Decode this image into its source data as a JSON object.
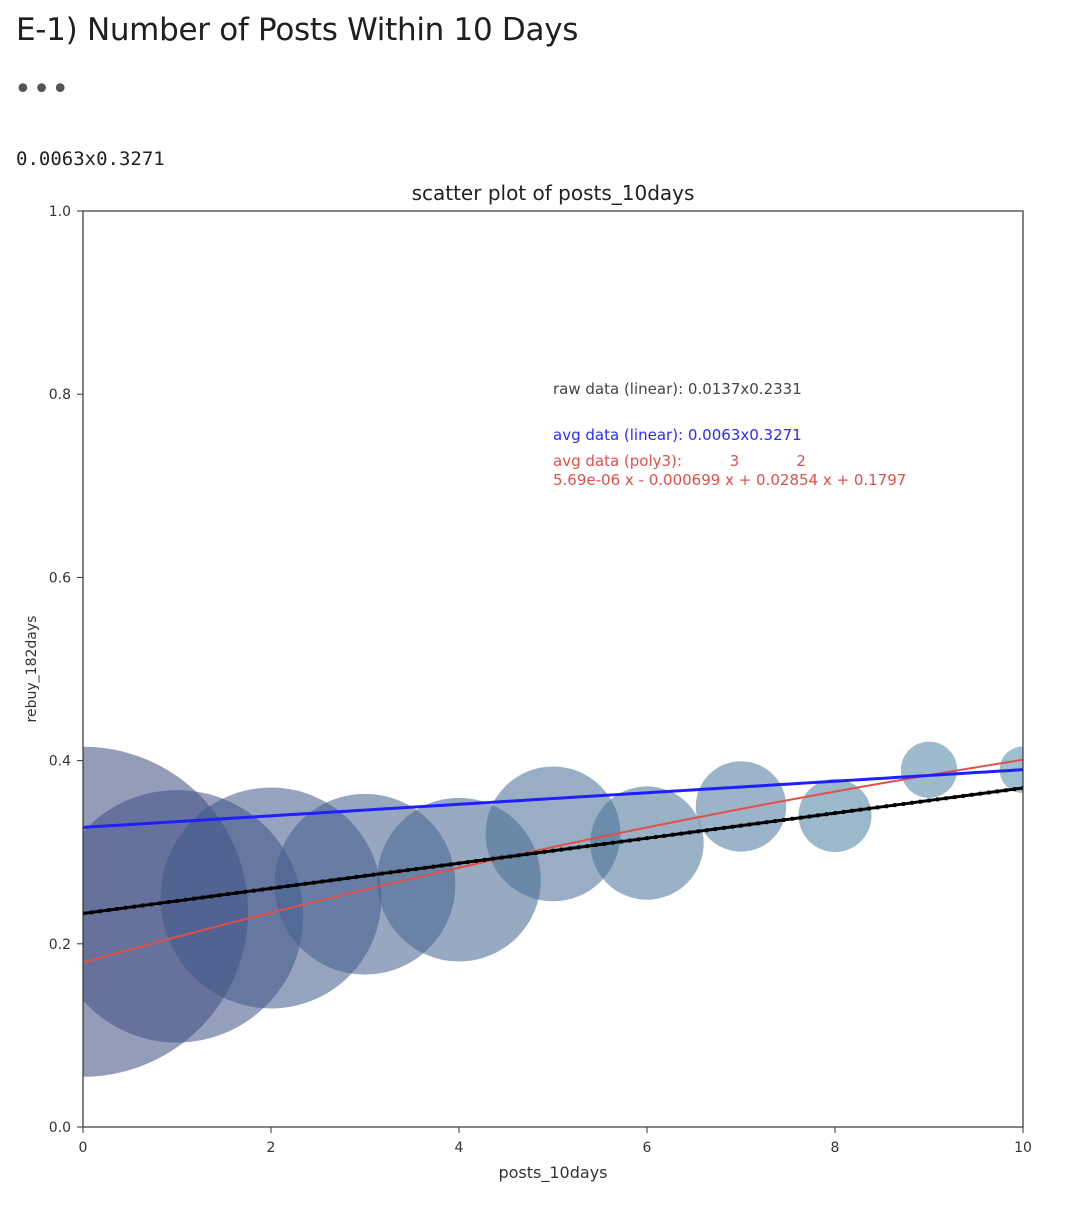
{
  "notebook": {
    "heading": "E-1) Number of Posts Within 10 Days",
    "collapsed_indicator": "•••",
    "printed_output": "0.0063x0.3271"
  },
  "chart_data": {
    "type": "scatter",
    "title": "scatter plot of posts_10days",
    "xlabel": "posts_10days",
    "ylabel": "rebuy_182days",
    "xlim": [
      0,
      10
    ],
    "ylim": [
      0,
      1.0
    ],
    "x_ticks": [
      "0",
      "2",
      "4",
      "6",
      "8",
      "10"
    ],
    "y_ticks": [
      "0.0",
      "0.2",
      "0.4",
      "0.6",
      "0.8",
      "1.0"
    ],
    "grid": false,
    "points": {
      "x": [
        0,
        1,
        2,
        3,
        4,
        5,
        6,
        7,
        8,
        9,
        10
      ],
      "y": [
        0.235,
        0.23,
        0.25,
        0.265,
        0.27,
        0.32,
        0.31,
        0.35,
        0.34,
        0.39,
        0.39
      ],
      "relative_size": [
        1.0,
        0.585,
        0.448,
        0.3,
        0.246,
        0.167,
        0.118,
        0.075,
        0.049,
        0.029,
        0.02
      ],
      "color_start": "#3d4b80",
      "color_end": "#4e8aa8",
      "opacity": 0.55
    },
    "lines": [
      {
        "name": "raw data (linear)",
        "kind": "linear",
        "slope": 0.0137,
        "intercept": 0.2331,
        "color": "#000000"
      },
      {
        "name": "avg data (linear)",
        "kind": "linear",
        "slope": 0.0063,
        "intercept": 0.3271,
        "color": "#1f1fff"
      },
      {
        "name": "avg data (poly3)",
        "kind": "poly3",
        "coefficients": [
          5.69e-06,
          -0.000699,
          0.02854,
          0.1797
        ],
        "color": "#e0504a"
      }
    ],
    "annotations": [
      {
        "text": "raw data (linear): 0.0137x0.2331",
        "color": "#444444"
      },
      {
        "text": "avg data (linear): 0.0063x0.3271",
        "color": "#2b2bff"
      },
      {
        "text": "avg data (poly3):          3            2",
        "color": "#e0504a"
      },
      {
        "text": "5.69e-06 x - 0.000699 x + 0.02854 x + 0.1797",
        "color": "#e0504a"
      }
    ]
  }
}
